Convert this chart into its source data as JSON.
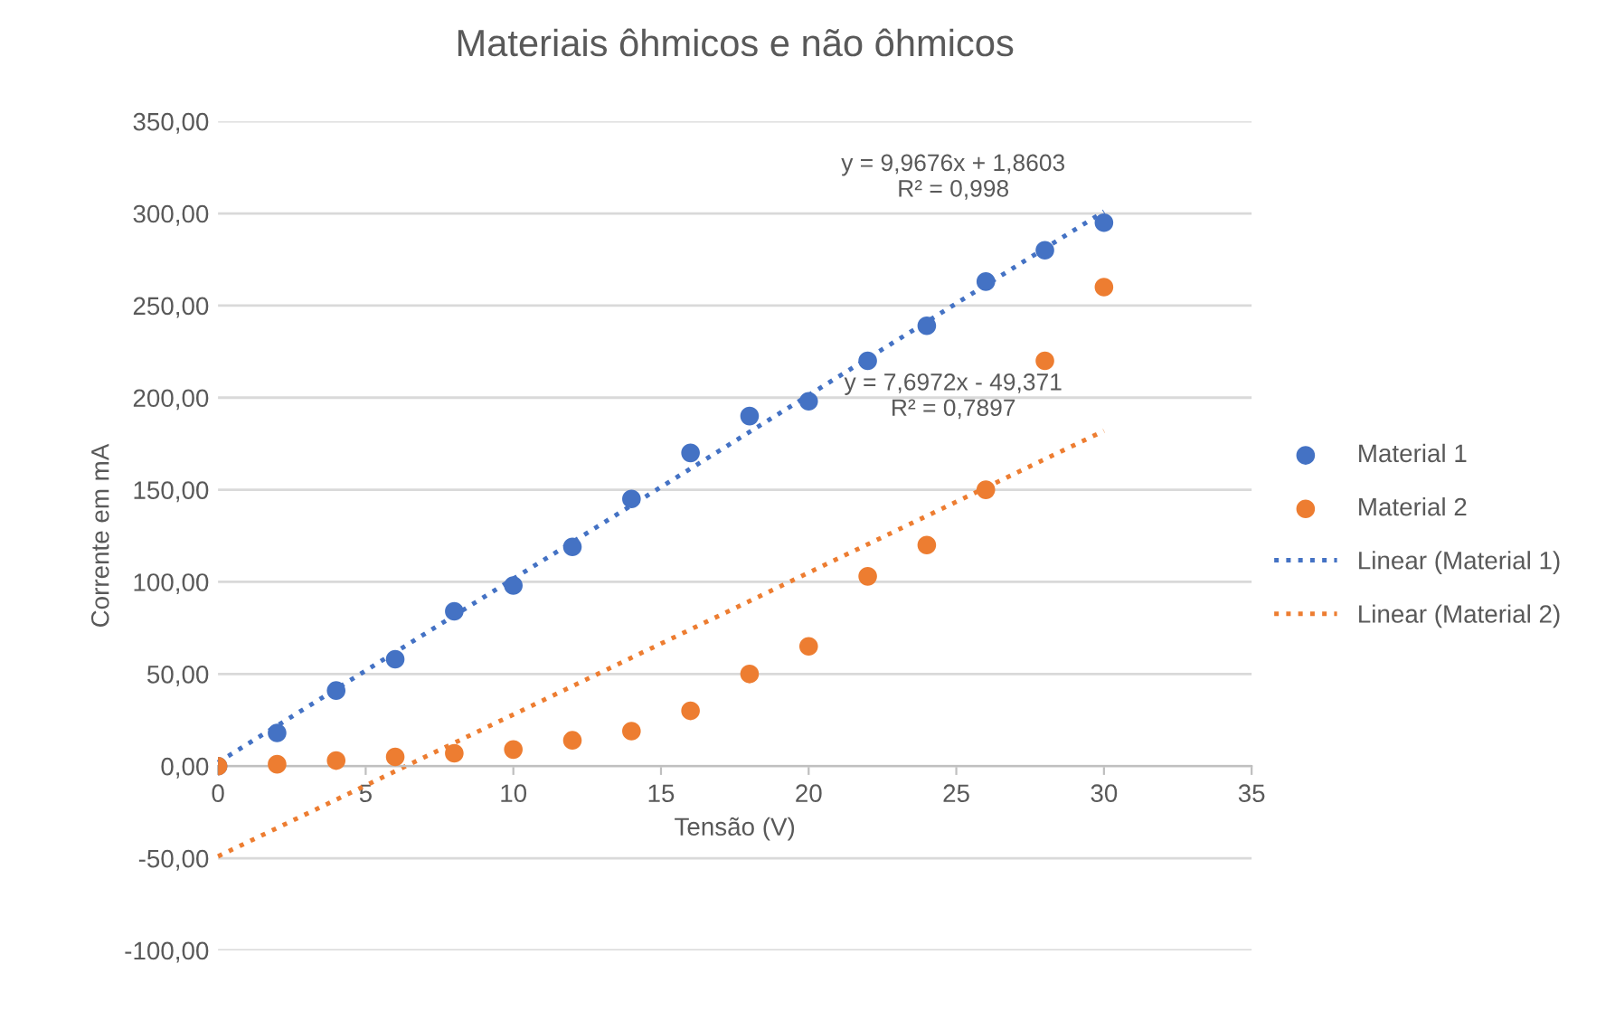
{
  "chart_data": {
    "type": "scatter",
    "title": "Materiais ôhmicos e não ôhmicos",
    "xlabel": "Tensão (V)",
    "ylabel": "Corrente em mA",
    "x": [
      0,
      2,
      4,
      6,
      8,
      10,
      12,
      14,
      16,
      18,
      20,
      22,
      24,
      26,
      28,
      30
    ],
    "series": [
      {
        "name": "Material 1",
        "color": "#4472c4",
        "marker": "circle",
        "values": [
          0,
          18,
          41,
          58,
          84,
          98,
          119,
          145,
          170,
          190,
          198,
          220,
          239,
          263,
          280,
          295
        ]
      },
      {
        "name": "Material 2",
        "color": "#ed7d31",
        "marker": "circle",
        "values": [
          0,
          1,
          3,
          5,
          7,
          9,
          14,
          19,
          30,
          50,
          65,
          103,
          120,
          150,
          220,
          260
        ]
      },
      {
        "name": "Linear (Material 1)",
        "type": "line",
        "color": "#4472c4",
        "line_style": "dotted",
        "marker": "none",
        "values": [
          2,
          null,
          null,
          null,
          null,
          null,
          null,
          null,
          null,
          null,
          null,
          null,
          null,
          null,
          null,
          301
        ]
      },
      {
        "name": "Linear (Material 2)",
        "type": "line",
        "color": "#ed7d31",
        "line_style": "dotted",
        "marker": "none",
        "values": [
          -49,
          null,
          null,
          null,
          null,
          null,
          null,
          null,
          null,
          null,
          null,
          null,
          null,
          null,
          null,
          182
        ]
      }
    ],
    "xlim": [
      0,
      35
    ],
    "xticks": [
      0,
      5,
      10,
      15,
      20,
      25,
      30,
      35
    ],
    "ylim": [
      -100,
      350
    ],
    "yticks": [
      {
        "value": -100,
        "label": "-100,00"
      },
      {
        "value": -50,
        "label": "-50,00"
      },
      {
        "value": 0,
        "label": "0,00"
      },
      {
        "value": 50,
        "label": "50,00"
      },
      {
        "value": 100,
        "label": "100,00"
      },
      {
        "value": 150,
        "label": "150,00"
      },
      {
        "value": 200,
        "label": "200,00"
      },
      {
        "value": 250,
        "label": "250,00"
      },
      {
        "value": 300,
        "label": "300,00"
      },
      {
        "value": 350,
        "label": "350,00"
      }
    ],
    "grid": "y",
    "legend": "right",
    "annotations": [
      "y = 9,9676x + 1,8603\nR² = 0,998",
      "y = 7,6972x - 49,371\nR² = 0,7897"
    ]
  }
}
